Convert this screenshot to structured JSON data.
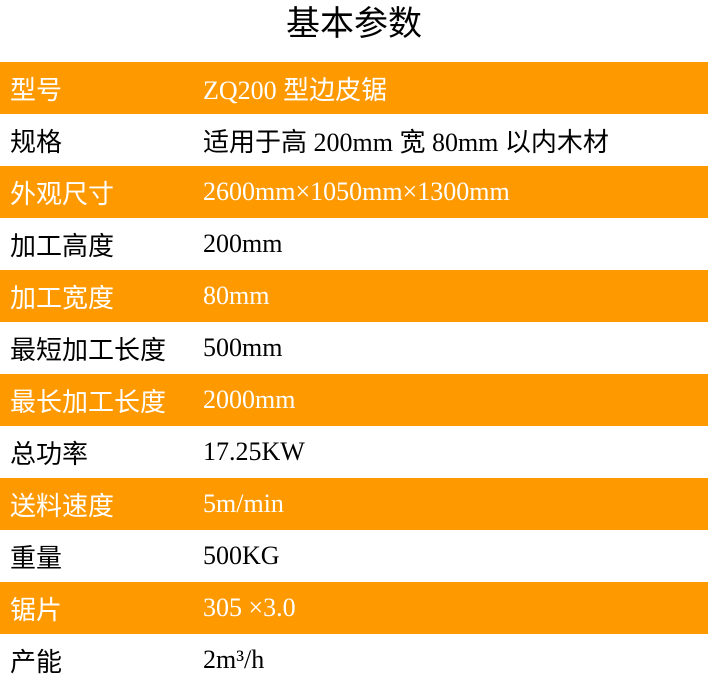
{
  "title": "基本参数",
  "accent_color": "#FF9900",
  "rows": [
    {
      "label": "型号",
      "value": "ZQ200 型边皮锯"
    },
    {
      "label": "规格",
      "value": "适用于高 200mm 宽 80mm 以内木材"
    },
    {
      "label": "外观尺寸",
      "value": "2600mm×1050mm×1300mm"
    },
    {
      "label": "加工高度",
      "value": "200mm"
    },
    {
      "label": "加工宽度",
      "value": "80mm"
    },
    {
      "label": "最短加工长度",
      "value": "500mm"
    },
    {
      "label": "最长加工长度",
      "value": "2000mm"
    },
    {
      "label": "总功率",
      "value": "17.25KW"
    },
    {
      "label": "送料速度",
      "value": "5m/min"
    },
    {
      "label": "重量",
      "value": "500KG"
    },
    {
      "label": "锯片",
      "value": "305 ×3.0"
    },
    {
      "label": "产能",
      "value": "2m³/h"
    }
  ]
}
